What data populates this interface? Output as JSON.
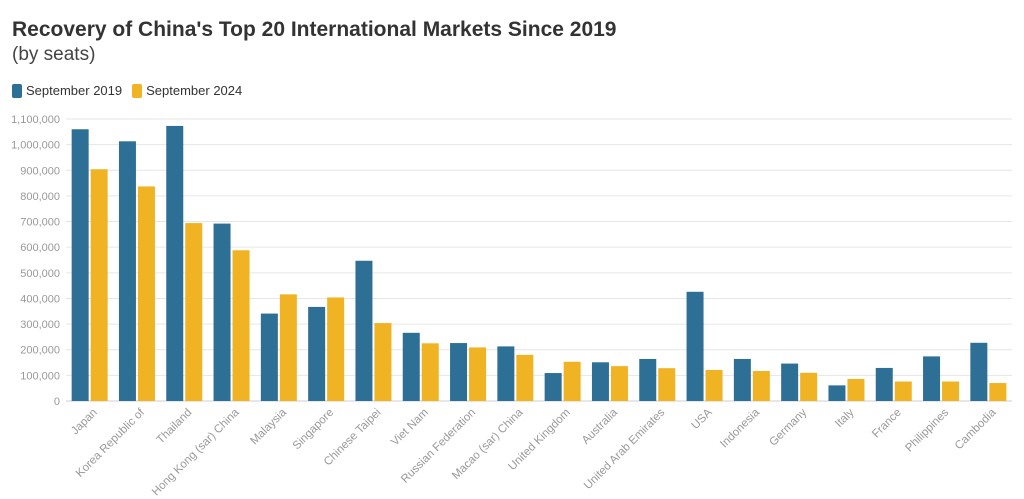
{
  "chart_data": {
    "type": "bar",
    "title": "Recovery of China's Top 20 International Markets Since 2019",
    "subtitle": "(by seats)",
    "categories": [
      "Japan",
      "Korea Republic of",
      "Thailand",
      "Hong Kong (sar) China",
      "Malaysia",
      "Singapore",
      "Chinese Taipei",
      "Viet Nam",
      "Russian Federation",
      "Macao (sar) China",
      "United Kingdom",
      "Australia",
      "United Arab Emirates",
      "USA",
      "Indonesia",
      "Germany",
      "Italy",
      "France",
      "Philippines",
      "Cambodia"
    ],
    "series": [
      {
        "name": "September 2019",
        "color": "#2e6f96",
        "values": [
          1060000,
          1013000,
          1073000,
          692000,
          341000,
          367000,
          547000,
          266000,
          226000,
          213000,
          109000,
          151000,
          164000,
          426000,
          164000,
          146000,
          61000,
          129000,
          174000,
          227000
        ]
      },
      {
        "name": "September 2024",
        "color": "#f0b323",
        "values": [
          904000,
          837000,
          694000,
          588000,
          416000,
          404000,
          304000,
          225000,
          209000,
          180000,
          153000,
          136000,
          128000,
          121000,
          117000,
          110000,
          86000,
          76000,
          76000,
          70000
        ]
      }
    ],
    "ylim": [
      0,
      1100000
    ],
    "yticks": [
      "0",
      "100,000",
      "200,000",
      "300,000",
      "400,000",
      "500,000",
      "600,000",
      "700,000",
      "800,000",
      "900,000",
      "1,000,000",
      "1,100,000"
    ],
    "grid": true,
    "legend_position": "top-left"
  }
}
